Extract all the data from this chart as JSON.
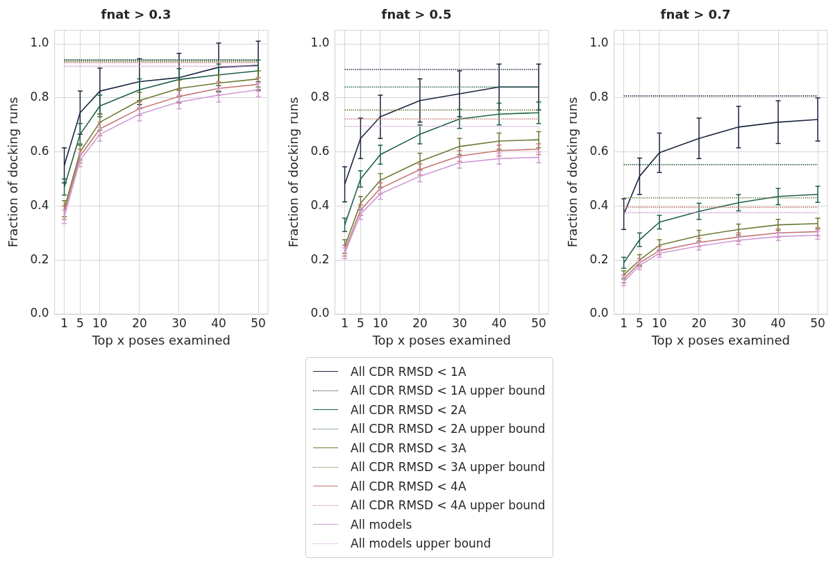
{
  "chart_data": [
    {
      "type": "line",
      "title": "fnat > 0.3",
      "xlabel": "Top x poses examined",
      "ylabel": "Fraction of docking runs",
      "x": [
        1,
        5,
        10,
        20,
        30,
        40,
        50
      ],
      "xlim": [
        -1.45,
        52.45
      ],
      "ylim": [
        0,
        1.05
      ],
      "xticks": [
        1,
        5,
        10,
        20,
        30,
        40,
        50
      ],
      "yticks": [
        {
          "value": 0,
          "label": "0.0"
        },
        {
          "value": 0.2,
          "label": "0.2"
        },
        {
          "value": 0.4,
          "label": "0.4"
        },
        {
          "value": 0.6,
          "label": "0.6"
        },
        {
          "value": 0.8,
          "label": "0.8"
        },
        {
          "value": 1,
          "label": "1.0"
        }
      ],
      "grid": true,
      "legend": "bottom",
      "marker": "none",
      "series": [
        {
          "name": "All CDR RMSD < 1A",
          "color": "#1b2541",
          "line_style": "solid",
          "values": [
            0.55,
            0.745,
            0.825,
            0.86,
            0.875,
            0.913,
            0.92
          ],
          "errors": [
            0.065,
            0.08,
            0.085,
            0.085,
            0.09,
            0.09,
            0.09
          ]
        },
        {
          "name": "All CDR RMSD < 1A upper bound",
          "color": "#1b2541",
          "line_style": "dotted",
          "values": [
            0.94,
            0.94,
            0.94,
            0.94,
            0.94,
            0.94,
            0.94
          ]
        },
        {
          "name": "All CDR RMSD < 2A",
          "color": "#1e6045",
          "line_style": "solid",
          "values": [
            0.47,
            0.665,
            0.77,
            0.83,
            0.868,
            0.885,
            0.9
          ],
          "errors": [
            0.03,
            0.04,
            0.04,
            0.04,
            0.04,
            0.04,
            0.04
          ]
        },
        {
          "name": "All CDR RMSD < 2A upper bound",
          "color": "#1e6045",
          "line_style": "dotted",
          "values": [
            0.94,
            0.94,
            0.94,
            0.94,
            0.94,
            0.94,
            0.94
          ]
        },
        {
          "name": "All CDR RMSD < 3A",
          "color": "#6b7a35",
          "line_style": "solid",
          "values": [
            0.39,
            0.6,
            0.71,
            0.79,
            0.835,
            0.855,
            0.87
          ],
          "errors": [
            0.03,
            0.03,
            0.03,
            0.03,
            0.03,
            0.03,
            0.03
          ]
        },
        {
          "name": "All CDR RMSD < 3A upper bound",
          "color": "#6b7a35",
          "line_style": "dotted",
          "values": [
            0.935,
            0.935,
            0.935,
            0.935,
            0.935,
            0.935,
            0.935
          ]
        },
        {
          "name": "All CDR RMSD < 4A",
          "color": "#c67674",
          "line_style": "solid",
          "values": [
            0.375,
            0.585,
            0.685,
            0.76,
            0.805,
            0.835,
            0.85
          ],
          "errors": [
            0.025,
            0.025,
            0.025,
            0.025,
            0.025,
            0.025,
            0.025
          ]
        },
        {
          "name": "All CDR RMSD < 4A upper bound",
          "color": "#c67674",
          "line_style": "dotted",
          "values": [
            0.93,
            0.93,
            0.93,
            0.93,
            0.93,
            0.93,
            0.93
          ]
        },
        {
          "name": "All models",
          "color": "#cf9ad6",
          "line_style": "solid",
          "values": [
            0.36,
            0.57,
            0.665,
            0.74,
            0.785,
            0.81,
            0.83
          ],
          "errors": [
            0.025,
            0.025,
            0.025,
            0.025,
            0.025,
            0.025,
            0.025
          ]
        },
        {
          "name": "All models upper bound",
          "color": "#cf9ad6",
          "line_style": "dotted",
          "values": [
            0.917,
            0.917,
            0.917,
            0.917,
            0.917,
            0.917,
            0.917
          ]
        }
      ]
    },
    {
      "type": "line",
      "title": "fnat > 0.5",
      "xlabel": "Top x poses examined",
      "ylabel": "Fraction of docking runs",
      "x": [
        1,
        5,
        10,
        20,
        30,
        40,
        50
      ],
      "xlim": [
        -1.45,
        52.45
      ],
      "ylim": [
        0,
        1.05
      ],
      "xticks": [
        1,
        5,
        10,
        20,
        30,
        40,
        50
      ],
      "yticks": [
        {
          "value": 0,
          "label": "0.0"
        },
        {
          "value": 0.2,
          "label": "0.2"
        },
        {
          "value": 0.4,
          "label": "0.4"
        },
        {
          "value": 0.6,
          "label": "0.6"
        },
        {
          "value": 0.8,
          "label": "0.8"
        },
        {
          "value": 1,
          "label": "1.0"
        }
      ],
      "grid": true,
      "marker": "none",
      "series": [
        {
          "color": "#1b2541",
          "line_style": "solid",
          "values": [
            0.48,
            0.65,
            0.73,
            0.79,
            0.815,
            0.84,
            0.84
          ],
          "errors": [
            0.065,
            0.075,
            0.08,
            0.08,
            0.085,
            0.085,
            0.085
          ]
        },
        {
          "color": "#1b2541",
          "line_style": "dotted",
          "values": [
            0.905,
            0.905,
            0.905,
            0.905,
            0.905,
            0.905,
            0.905
          ]
        },
        {
          "color": "#1e6045",
          "line_style": "solid",
          "values": [
            0.33,
            0.5,
            0.59,
            0.665,
            0.722,
            0.74,
            0.745
          ],
          "errors": [
            0.025,
            0.03,
            0.035,
            0.035,
            0.035,
            0.04,
            0.04
          ]
        },
        {
          "color": "#1e6045",
          "line_style": "dotted",
          "values": [
            0.84,
            0.84,
            0.84,
            0.84,
            0.84,
            0.84,
            0.84
          ]
        },
        {
          "color": "#6b7a35",
          "line_style": "solid",
          "values": [
            0.25,
            0.41,
            0.495,
            0.565,
            0.62,
            0.64,
            0.645
          ],
          "errors": [
            0.025,
            0.025,
            0.025,
            0.03,
            0.03,
            0.03,
            0.03
          ]
        },
        {
          "color": "#6b7a35",
          "line_style": "dotted",
          "values": [
            0.755,
            0.755,
            0.755,
            0.755,
            0.755,
            0.755,
            0.755
          ]
        },
        {
          "color": "#c67674",
          "line_style": "solid",
          "values": [
            0.235,
            0.385,
            0.465,
            0.535,
            0.585,
            0.605,
            0.61
          ],
          "errors": [
            0.02,
            0.02,
            0.02,
            0.02,
            0.02,
            0.02,
            0.02
          ]
        },
        {
          "color": "#c67674",
          "line_style": "dotted",
          "values": [
            0.722,
            0.722,
            0.722,
            0.722,
            0.722,
            0.722,
            0.722
          ]
        },
        {
          "color": "#cf9ad6",
          "line_style": "solid",
          "values": [
            0.225,
            0.37,
            0.445,
            0.51,
            0.56,
            0.575,
            0.58
          ],
          "errors": [
            0.02,
            0.02,
            0.02,
            0.02,
            0.02,
            0.02,
            0.02
          ]
        },
        {
          "color": "#cf9ad6",
          "line_style": "dotted",
          "values": [
            0.695,
            0.695,
            0.695,
            0.695,
            0.695,
            0.695,
            0.695
          ]
        }
      ]
    },
    {
      "type": "line",
      "title": "fnat > 0.7",
      "xlabel": "Top x poses examined",
      "ylabel": "Fraction of docking runs",
      "x": [
        1,
        5,
        10,
        20,
        30,
        40,
        50
      ],
      "xlim": [
        -1.45,
        52.45
      ],
      "ylim": [
        0,
        1.05
      ],
      "xticks": [
        1,
        5,
        10,
        20,
        30,
        40,
        50
      ],
      "yticks": [
        {
          "value": 0,
          "label": "0.0"
        },
        {
          "value": 0.2,
          "label": "0.2"
        },
        {
          "value": 0.4,
          "label": "0.4"
        },
        {
          "value": 0.6,
          "label": "0.6"
        },
        {
          "value": 0.8,
          "label": "0.8"
        },
        {
          "value": 1,
          "label": "1.0"
        }
      ],
      "grid": true,
      "marker": "none",
      "series": [
        {
          "color": "#1b2541",
          "line_style": "solid",
          "values": [
            0.37,
            0.51,
            0.597,
            0.65,
            0.692,
            0.71,
            0.72
          ],
          "errors": [
            0.057,
            0.067,
            0.073,
            0.075,
            0.077,
            0.079,
            0.08
          ]
        },
        {
          "color": "#1b2541",
          "line_style": "dotted",
          "values": [
            0.807,
            0.807,
            0.807,
            0.807,
            0.807,
            0.807,
            0.807
          ]
        },
        {
          "color": "#1e6045",
          "line_style": "solid",
          "values": [
            0.19,
            0.275,
            0.34,
            0.38,
            0.412,
            0.435,
            0.443
          ],
          "errors": [
            0.02,
            0.025,
            0.025,
            0.03,
            0.03,
            0.03,
            0.03
          ]
        },
        {
          "color": "#1e6045",
          "line_style": "dotted",
          "values": [
            0.553,
            0.553,
            0.553,
            0.553,
            0.553,
            0.553,
            0.553
          ]
        },
        {
          "color": "#6b7a35",
          "line_style": "solid",
          "values": [
            0.145,
            0.2,
            0.255,
            0.29,
            0.313,
            0.33,
            0.335
          ],
          "errors": [
            0.015,
            0.02,
            0.02,
            0.02,
            0.02,
            0.02,
            0.02
          ]
        },
        {
          "color": "#6b7a35",
          "line_style": "dotted",
          "values": [
            0.43,
            0.43,
            0.43,
            0.43,
            0.43,
            0.43,
            0.43
          ]
        },
        {
          "color": "#c67674",
          "line_style": "solid",
          "values": [
            0.13,
            0.19,
            0.235,
            0.265,
            0.285,
            0.3,
            0.305
          ],
          "errors": [
            0.015,
            0.015,
            0.015,
            0.015,
            0.015,
            0.015,
            0.015
          ]
        },
        {
          "color": "#c67674",
          "line_style": "dotted",
          "values": [
            0.395,
            0.395,
            0.395,
            0.395,
            0.395,
            0.395,
            0.395
          ]
        },
        {
          "color": "#cf9ad6",
          "line_style": "solid",
          "values": [
            0.12,
            0.18,
            0.225,
            0.252,
            0.273,
            0.287,
            0.292
          ],
          "errors": [
            0.015,
            0.015,
            0.015,
            0.015,
            0.015,
            0.015,
            0.015
          ]
        },
        {
          "color": "#cf9ad6",
          "line_style": "dotted",
          "values": [
            0.375,
            0.375,
            0.375,
            0.375,
            0.375,
            0.375,
            0.375
          ]
        }
      ]
    }
  ]
}
